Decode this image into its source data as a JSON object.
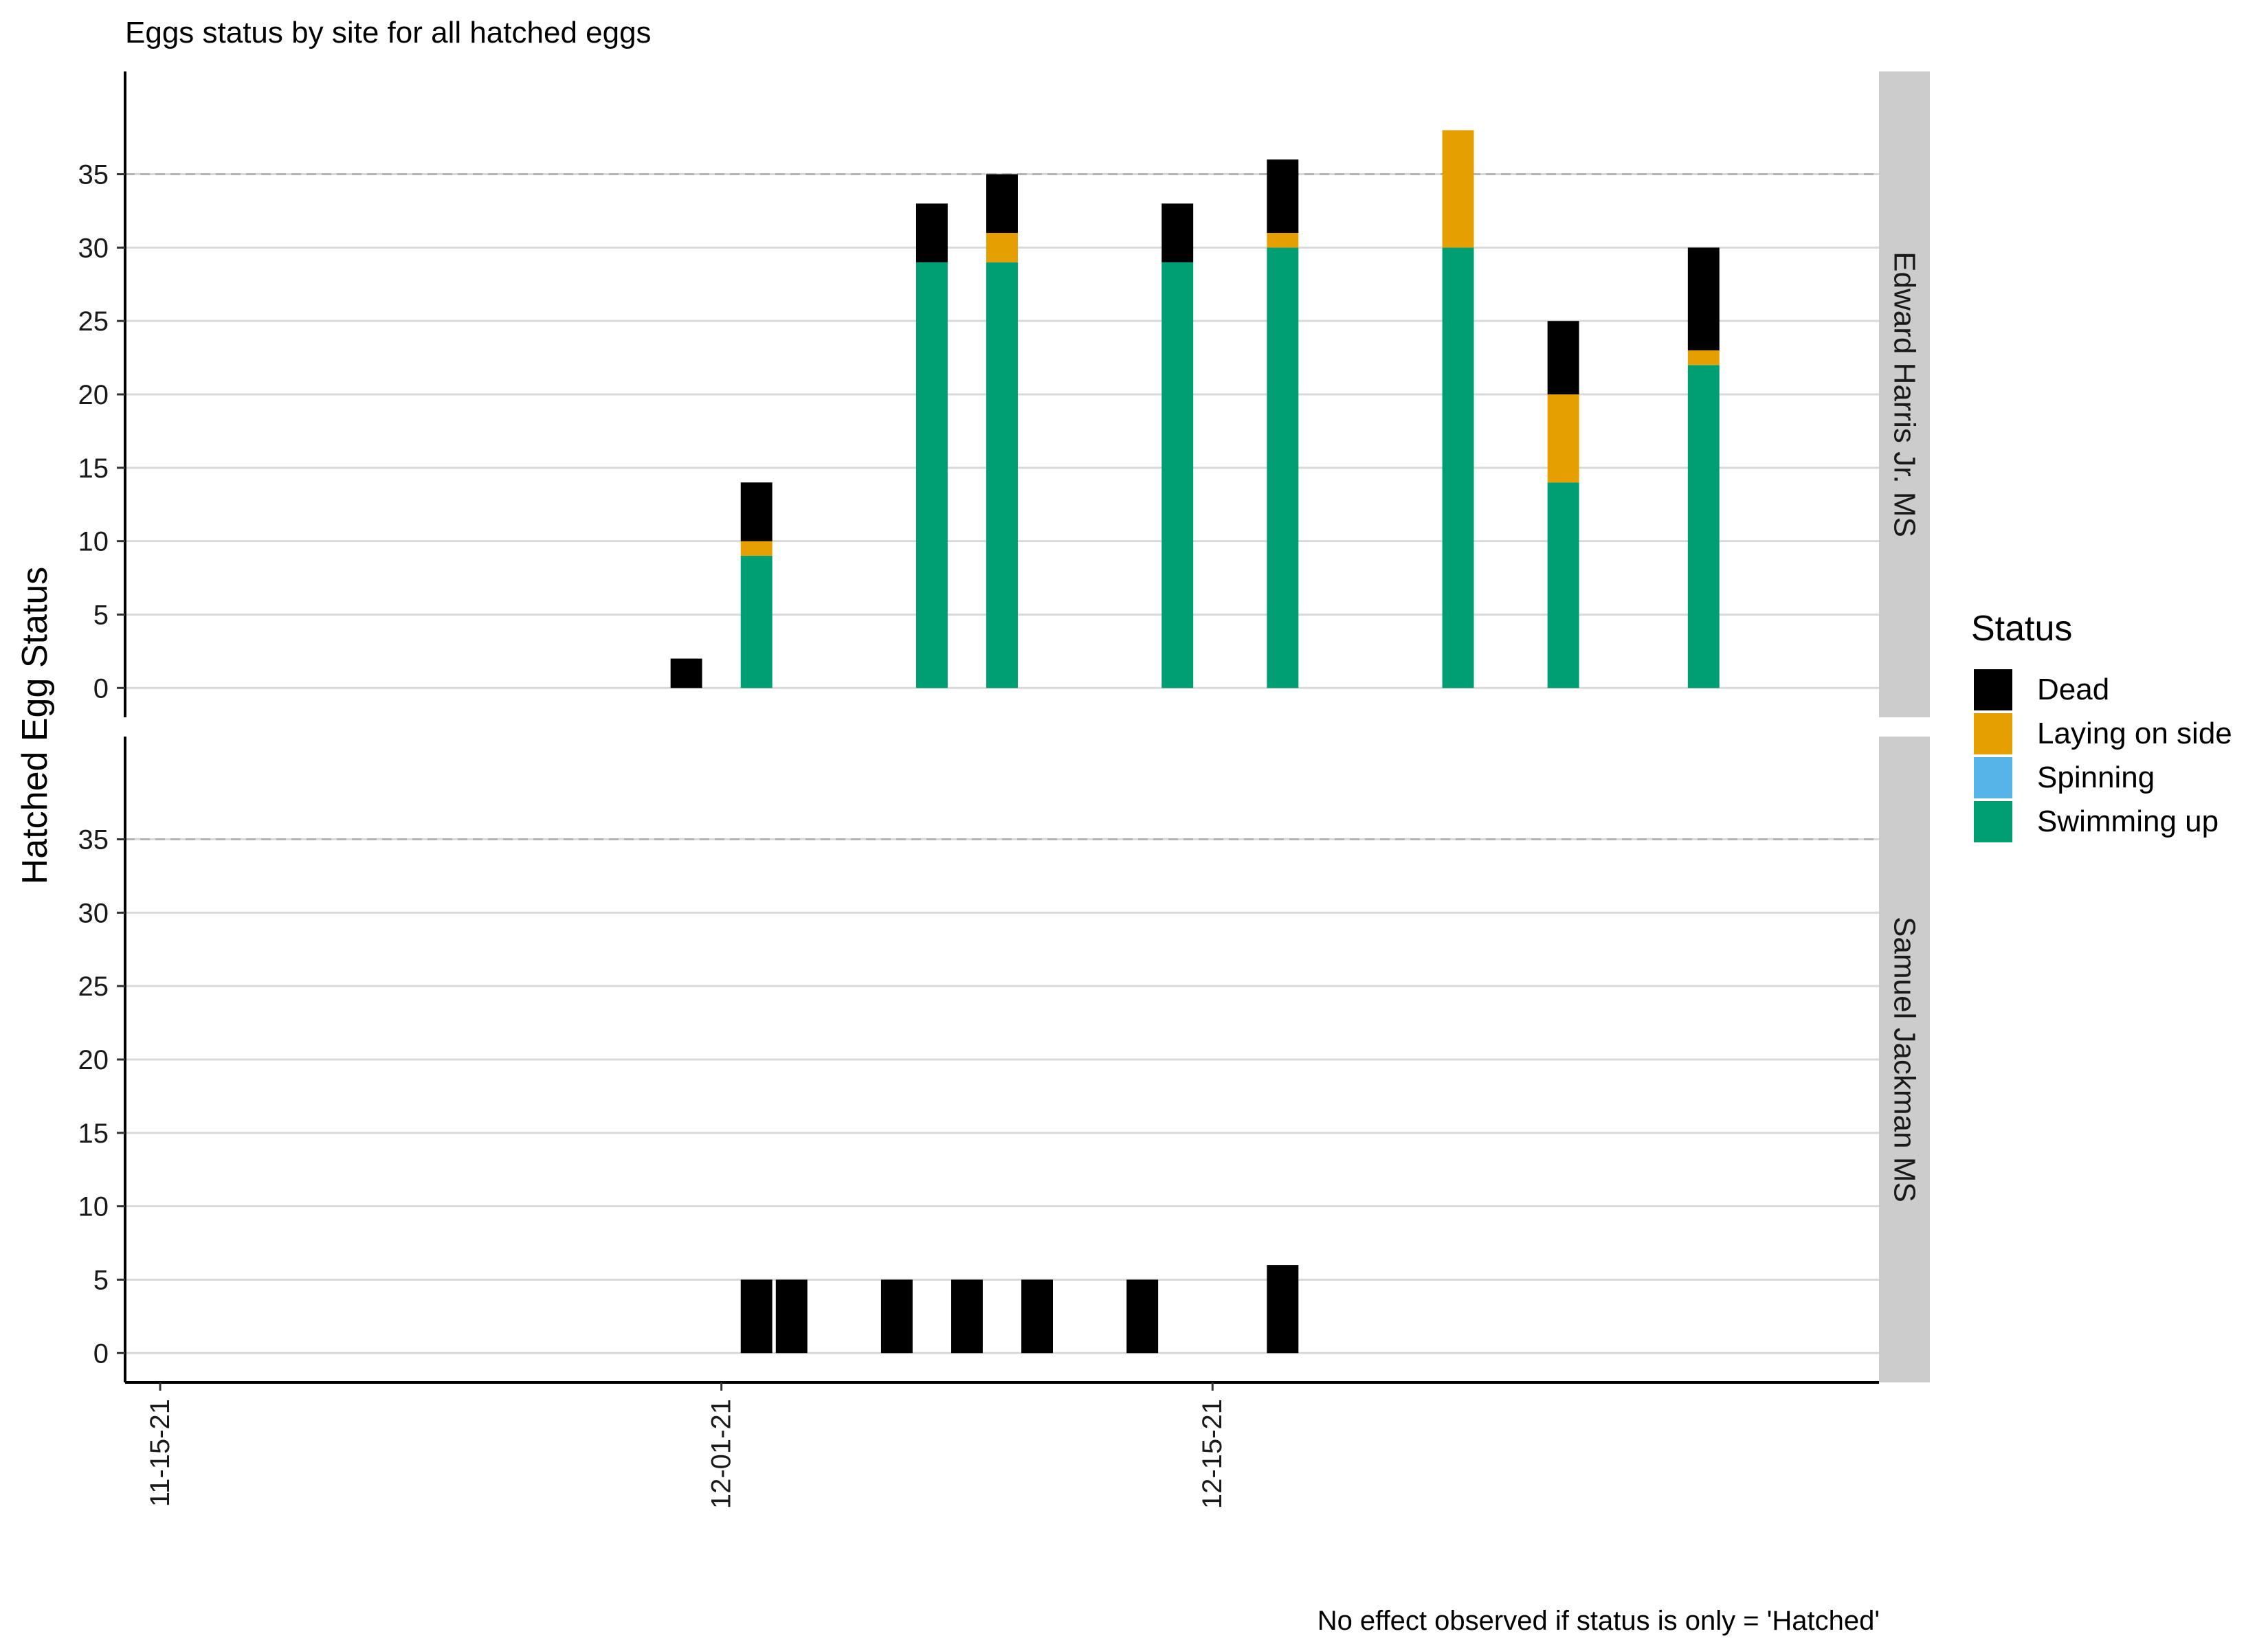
{
  "chart_data": {
    "type": "bar",
    "stacked": true,
    "title": "Eggs status by site for all hatched eggs",
    "ylabel": "Hatched Egg Status",
    "xlabel": "",
    "caption": "No effect observed if status is only = 'Hatched'",
    "ylim": [
      -2,
      42
    ],
    "yticks": [
      "0",
      "5",
      "10",
      "15",
      "20",
      "25",
      "30",
      "35"
    ],
    "reference_line": {
      "y": 35,
      "style": "dashed"
    },
    "xlim": [
      "2021-11-14",
      "2022-01-03"
    ],
    "xticks": [
      {
        "date": "2021-11-15",
        "label": "11-15-21"
      },
      {
        "date": "2021-12-01",
        "label": "12-01-21"
      },
      {
        "date": "2021-12-15",
        "label": "12-15-21"
      }
    ],
    "grid": "horizontal major",
    "legend": {
      "title": "Status",
      "position": "right",
      "items": [
        {
          "name": "Dead",
          "color": "#000000"
        },
        {
          "name": "Laying on side",
          "color": "#E69F00"
        },
        {
          "name": "Spinning",
          "color": "#56B4E9"
        },
        {
          "name": "Swimming up",
          "color": "#009E73"
        }
      ]
    },
    "stack_order": [
      "Swimming up",
      "Spinning",
      "Laying on side",
      "Dead"
    ],
    "panels": [
      {
        "strip": "Edward Harris Jr. MS",
        "bars": [
          {
            "date": "2021-11-30",
            "Dead": 2
          },
          {
            "date": "2021-12-02",
            "Swimming up": 9,
            "Laying on side": 1,
            "Dead": 4
          },
          {
            "date": "2021-12-07",
            "Swimming up": 29,
            "Dead": 4
          },
          {
            "date": "2021-12-09",
            "Swimming up": 29,
            "Laying on side": 2,
            "Dead": 4
          },
          {
            "date": "2021-12-14",
            "Swimming up": 29,
            "Dead": 4
          },
          {
            "date": "2021-12-17",
            "Swimming up": 30,
            "Laying on side": 1,
            "Dead": 5
          },
          {
            "date": "2021-12-22",
            "Swimming up": 30,
            "Laying on side": 8
          },
          {
            "date": "2021-12-25",
            "Swimming up": 14,
            "Laying on side": 6,
            "Dead": 5
          },
          {
            "date": "2021-12-29",
            "Swimming up": 22,
            "Laying on side": 1,
            "Dead": 7
          }
        ]
      },
      {
        "strip": "Samuel Jackman MS",
        "bars": [
          {
            "date": "2021-12-02",
            "Dead": 5
          },
          {
            "date": "2021-12-03",
            "Dead": 5
          },
          {
            "date": "2021-12-06",
            "Dead": 5
          },
          {
            "date": "2021-12-08",
            "Dead": 5
          },
          {
            "date": "2021-12-10",
            "Dead": 5
          },
          {
            "date": "2021-12-13",
            "Dead": 5
          },
          {
            "date": "2021-12-17",
            "Dead": 6
          }
        ]
      }
    ]
  }
}
